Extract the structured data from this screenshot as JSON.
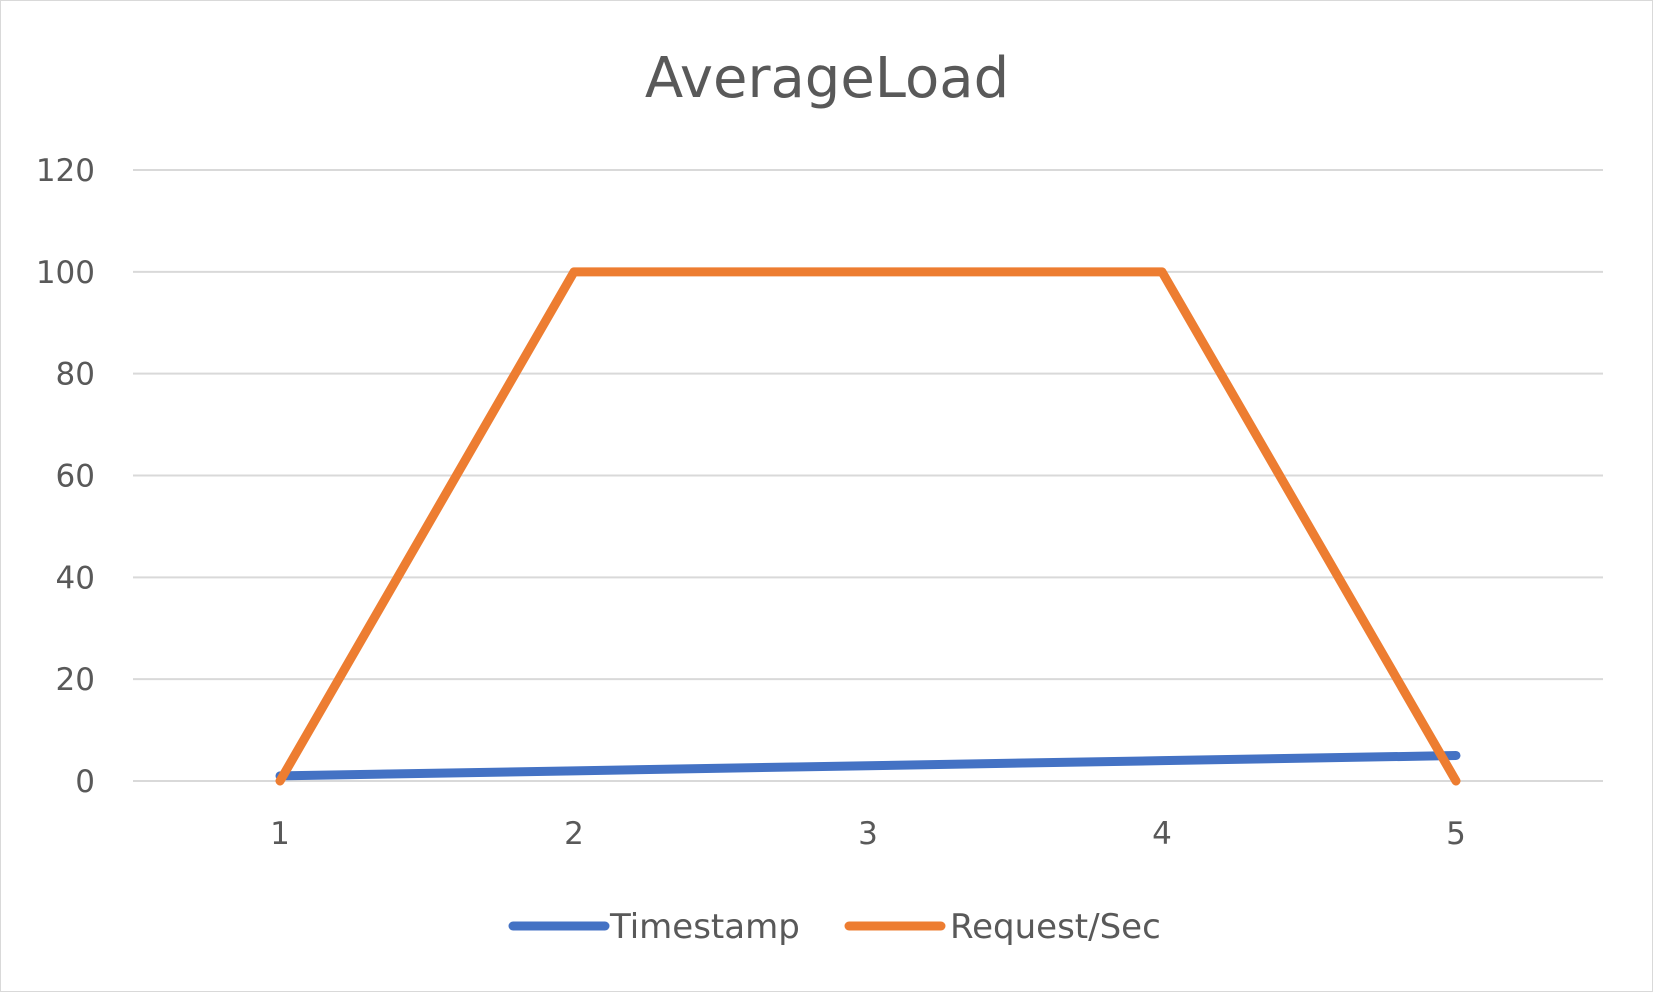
{
  "chart_data": {
    "type": "line",
    "title": "AverageLoad",
    "xlabel": "",
    "ylabel": "",
    "categories": [
      "1",
      "2",
      "3",
      "4",
      "5"
    ],
    "series": [
      {
        "name": "Timestamp",
        "values": [
          1,
          2,
          3,
          4,
          5
        ],
        "color": "#4472C4"
      },
      {
        "name": "Request/Sec",
        "values": [
          0,
          100,
          100,
          100,
          0
        ],
        "color": "#ED7D31"
      }
    ],
    "ylim": [
      0,
      120
    ],
    "yticks": [
      "0",
      "20",
      "40",
      "60",
      "80",
      "100",
      "120"
    ],
    "grid": true,
    "legend": "bottom"
  }
}
